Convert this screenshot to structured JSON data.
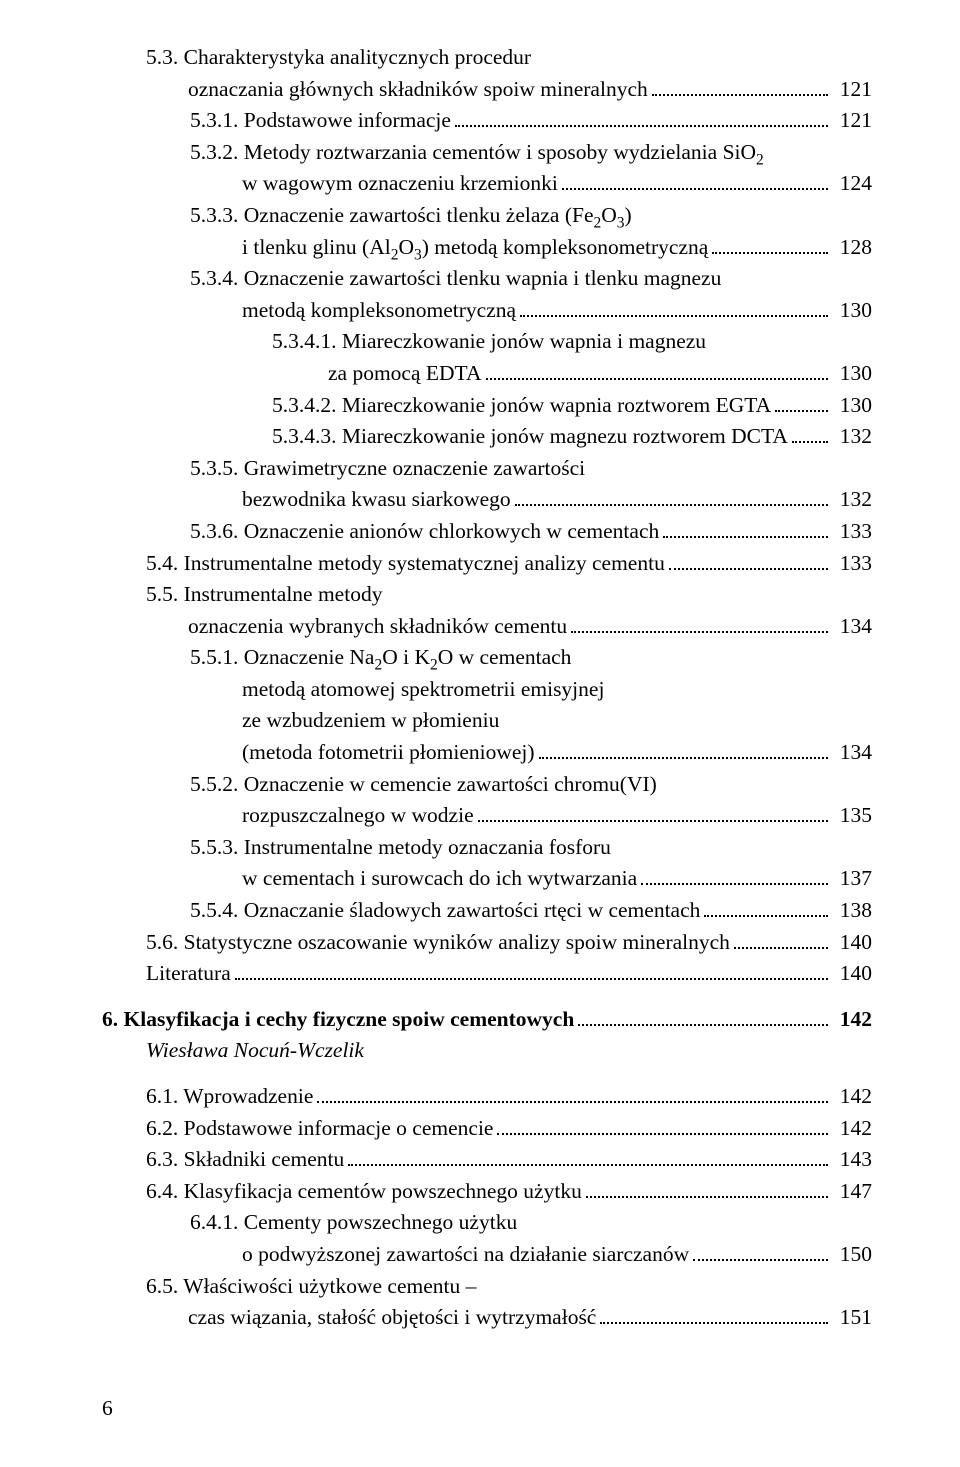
{
  "lines": [
    {
      "type": "entry-start",
      "level": 2,
      "text": "5.3. Charakterystyka analitycznych procedur"
    },
    {
      "type": "entry-end",
      "level": "cont2",
      "text": "oznaczania głównych składników spoiw mineralnych",
      "page": "121"
    },
    {
      "type": "entry",
      "level": 3,
      "text": "5.3.1. Podstawowe informacje",
      "page": "121"
    },
    {
      "type": "entry-start",
      "level": 3,
      "text": "5.3.2. Metody roztwarzania cementów i sposoby wydzielania SiO<sub>2</sub>"
    },
    {
      "type": "entry-end",
      "level": "cont3",
      "text": "w wagowym oznaczeniu krzemionki",
      "page": "124"
    },
    {
      "type": "entry-start",
      "level": 3,
      "text": "5.3.3. Oznaczenie zawartości tlenku żelaza (Fe<sub>2</sub>O<sub>3</sub>)"
    },
    {
      "type": "entry-end",
      "level": "cont3",
      "text": "i tlenku glinu (Al<sub>2</sub>O<sub>3</sub>) metodą kompleksonometryczną",
      "page": "128"
    },
    {
      "type": "entry-start",
      "level": 3,
      "text": "5.3.4. Oznaczenie zawartości tlenku wapnia i tlenku magnezu"
    },
    {
      "type": "entry-end",
      "level": "cont3",
      "text": "metodą kompleksonometryczną",
      "page": "130"
    },
    {
      "type": "entry-start",
      "level": 4,
      "text": "5.3.4.1. Miareczkowanie jonów wapnia i magnezu"
    },
    {
      "type": "entry-end",
      "level": "cont4",
      "text": "za pomocą EDTA",
      "page": "130"
    },
    {
      "type": "entry",
      "level": 4,
      "text": "5.3.4.2. Miareczkowanie jonów wapnia roztworem EGTA",
      "page": "130"
    },
    {
      "type": "entry",
      "level": 4,
      "text": "5.3.4.3. Miareczkowanie jonów magnezu roztworem DCTA",
      "page": "132"
    },
    {
      "type": "entry-start",
      "level": 3,
      "text": "5.3.5. Grawimetryczne oznaczenie zawartości"
    },
    {
      "type": "entry-end",
      "level": "cont3",
      "text": "bezwodnika kwasu siarkowego",
      "page": "132"
    },
    {
      "type": "entry",
      "level": 3,
      "text": "5.3.6. Oznaczenie anionów chlorkowych w cementach",
      "page": "133"
    },
    {
      "type": "entry",
      "level": 2,
      "text": "5.4. Instrumentalne metody systematycznej analizy cementu",
      "page": "133"
    },
    {
      "type": "entry-start",
      "level": 2,
      "text": "5.5. Instrumentalne metody"
    },
    {
      "type": "entry-end",
      "level": "cont2",
      "text": "oznaczenia wybranych składników cementu",
      "page": "134"
    },
    {
      "type": "entry-start",
      "level": 3,
      "text": "5.5.1. Oznaczenie Na<sub>2</sub>O i K<sub>2</sub>O w cementach"
    },
    {
      "type": "plain",
      "level": "cont3",
      "text": "metodą atomowej spektrometrii emisyjnej"
    },
    {
      "type": "plain",
      "level": "cont3",
      "text": "ze wzbudzeniem w płomieniu"
    },
    {
      "type": "entry-end",
      "level": "cont3",
      "text": "(metoda fotometrii płomieniowej)",
      "page": "134"
    },
    {
      "type": "entry-start",
      "level": 3,
      "text": "5.5.2. Oznaczenie w cemencie zawartości chromu(VI)"
    },
    {
      "type": "entry-end",
      "level": "cont3",
      "text": "rozpuszczalnego w wodzie",
      "page": "135"
    },
    {
      "type": "entry-start",
      "level": 3,
      "text": "5.5.3. Instrumentalne metody oznaczania fosforu"
    },
    {
      "type": "entry-end",
      "level": "cont3",
      "text": "w cementach i surowcach do ich wytwarzania",
      "page": "137"
    },
    {
      "type": "entry",
      "level": 3,
      "text": "5.5.4. Oznaczanie śladowych zawartości rtęci w cementach",
      "page": "138"
    },
    {
      "type": "entry",
      "level": 2,
      "text": "5.6. Statystyczne oszacowanie wyników analizy spoiw mineralnych",
      "page": "140"
    },
    {
      "type": "entry",
      "level": 2,
      "text": "Literatura",
      "page": "140"
    },
    {
      "type": "entry",
      "level": 1,
      "bold": true,
      "preChapter": true,
      "text": "6. Klasyfikacja i cechy fizyczne spoiw cementowych",
      "page": "142"
    },
    {
      "type": "author",
      "text": "Wiesława Nocuń-Wczelik"
    },
    {
      "type": "entry",
      "level": 2,
      "text": "6.1. Wprowadzenie",
      "page": "142"
    },
    {
      "type": "entry",
      "level": 2,
      "text": "6.2. Podstawowe informacje o cemencie",
      "page": "142"
    },
    {
      "type": "entry",
      "level": 2,
      "text": "6.3. Składniki cementu",
      "page": "143"
    },
    {
      "type": "entry",
      "level": 2,
      "text": "6.4. Klasyfikacja cementów powszechnego użytku",
      "page": "147"
    },
    {
      "type": "entry-start",
      "level": 3,
      "text": "6.4.1. Cementy powszechnego użytku"
    },
    {
      "type": "entry-end",
      "level": "cont3",
      "text": "o podwyższonej zawartości na działanie siarczanów",
      "page": "150"
    },
    {
      "type": "entry-start",
      "level": 2,
      "text": "6.5. Właściwości użytkowe cementu –"
    },
    {
      "type": "entry-end",
      "level": "cont2",
      "text": "czas wiązania, stałość objętości i wytrzymałość",
      "page": "151"
    }
  ],
  "pageNumber": "6"
}
